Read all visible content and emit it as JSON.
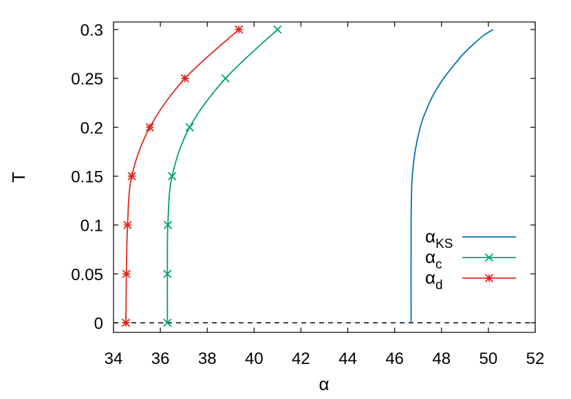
{
  "chart_data": {
    "type": "line",
    "title": "",
    "xlabel": "α",
    "ylabel": "T",
    "xlim": [
      34,
      52
    ],
    "ylim": [
      0,
      0.3
    ],
    "x_ticks": [
      34,
      36,
      38,
      40,
      42,
      44,
      46,
      48,
      50,
      52
    ],
    "y_ticks": [
      0,
      0.05,
      0.1,
      0.15,
      0.2,
      0.25,
      0.3
    ],
    "x_tick_labels": [
      "34",
      "36",
      "38",
      "40",
      "42",
      "44",
      "46",
      "48",
      "50",
      "52"
    ],
    "y_tick_labels": [
      "0",
      "0.05",
      "0.1",
      "0.15",
      "0.2",
      "0.25",
      "0.3"
    ],
    "grid": false,
    "legend_position": "bottom-right",
    "reference_line": {
      "y": 0,
      "style": "dashed",
      "color": "#000000"
    },
    "series": [
      {
        "name": "α_KS",
        "label_main": "α",
        "label_sub": "KS",
        "color": "#0072b2",
        "marker": "none",
        "x": [
          46.7,
          46.7,
          46.71,
          46.73,
          46.77,
          46.84,
          46.93,
          47.04,
          47.18,
          47.36,
          47.58,
          47.84,
          48.15,
          48.51,
          48.93,
          49.41,
          49.8,
          50.2
        ],
        "y": [
          0.0,
          0.09,
          0.12,
          0.14,
          0.155,
          0.17,
          0.183,
          0.195,
          0.207,
          0.218,
          0.23,
          0.241,
          0.252,
          0.263,
          0.275,
          0.286,
          0.294,
          0.3
        ]
      },
      {
        "name": "α_c",
        "label_main": "α",
        "label_sub": "c",
        "color": "#009e73",
        "marker": "x",
        "x": [
          36.3,
          36.3,
          36.32,
          36.5,
          37.25,
          38.78,
          41.0
        ],
        "y": [
          0.0,
          0.05,
          0.1,
          0.15,
          0.2,
          0.25,
          0.3
        ]
      },
      {
        "name": "α_d",
        "label_main": "α",
        "label_sub": "d",
        "color": "#e1261c",
        "marker": "asterisk",
        "x": [
          34.53,
          34.55,
          34.6,
          34.78,
          35.55,
          37.05,
          39.35
        ],
        "y": [
          0.0,
          0.05,
          0.1,
          0.15,
          0.2,
          0.25,
          0.3
        ]
      }
    ]
  }
}
